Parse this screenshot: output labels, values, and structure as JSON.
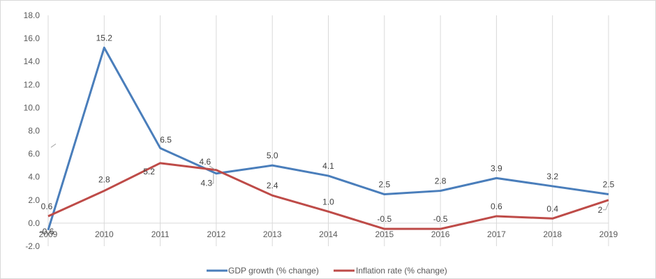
{
  "chart_data": {
    "type": "line",
    "title": "",
    "xlabel": "",
    "ylabel": "",
    "x": [
      "2009",
      "2010",
      "2011",
      "2012",
      "2013",
      "2014",
      "2015",
      "2016",
      "2017",
      "2018",
      "2019"
    ],
    "ylim": [
      -2,
      18
    ],
    "yticks": [
      "18.0",
      "16.0",
      "14.0",
      "12.0",
      "10.0",
      "8.0",
      "6.0",
      "4.0",
      "2.0",
      "0.0",
      "-2.0"
    ],
    "ytick_values": [
      18,
      16,
      14,
      12,
      10,
      8,
      6,
      4,
      2,
      0,
      -2
    ],
    "grid": "vertical",
    "legend_position": "bottom",
    "series": [
      {
        "name": "GDP growth (% change)",
        "color": "#4a7ebb",
        "values": [
          -0.6,
          15.2,
          6.5,
          4.3,
          5.0,
          4.1,
          2.5,
          2.8,
          3.9,
          3.2,
          2.5
        ],
        "labels": [
          "-0.6",
          "15.2",
          "6.5",
          "4.3",
          "5.0",
          "4.1",
          "2.5",
          "2.8",
          "3.9",
          "3.2",
          "2.5"
        ]
      },
      {
        "name": "Inflation rate (% change)",
        "color": "#be4b48",
        "values": [
          0.6,
          2.8,
          5.2,
          4.6,
          2.4,
          1.0,
          -0.5,
          -0.5,
          0.6,
          0.4,
          2
        ],
        "labels": [
          "0.6",
          "2.8",
          "5.2",
          "4.6",
          "2.4",
          "1.0",
          "-0.5",
          "-0.5",
          "0.6",
          "0.4",
          "2"
        ]
      }
    ]
  }
}
